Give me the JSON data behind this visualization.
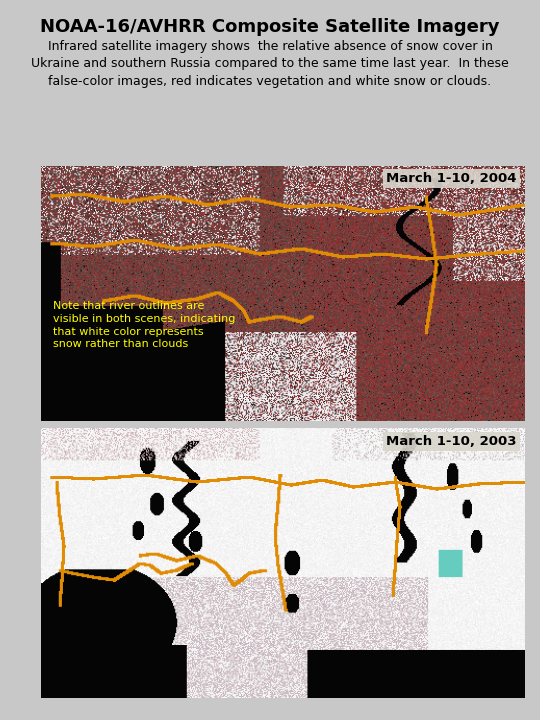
{
  "title": "NOAA-16/AVHRR Composite Satellite Imagery",
  "subtitle": "Infrared satellite imagery shows  the relative absence of snow cover in\nUkraine and southern Russia compared to the same time last year.  In these\nfalse-color images, red indicates vegetation and white snow or clouds.",
  "label_2004": "March 1-10, 2004",
  "label_2003": "March 1-10, 2003",
  "annotation": "Note that river outlines are\nvisible in both scenes, indicating\nthat white color represents\nsnow rather than clouds",
  "bg_color": "#c8c8c8",
  "title_color": "#000000",
  "subtitle_color": "#000000",
  "label_bg": "#d4d0c8",
  "annotation_color": "#ffff00",
  "panel_border_color": "#000000",
  "title_fontsize": 13,
  "subtitle_fontsize": 9,
  "label_fontsize": 9.5,
  "annotation_fontsize": 8,
  "fig_width": 5.4,
  "fig_height": 7.2,
  "dpi": 100
}
